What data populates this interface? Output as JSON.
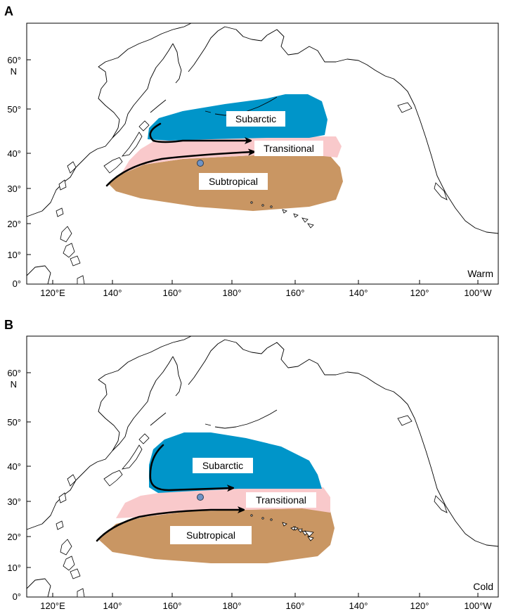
{
  "panels": [
    {
      "letter": "A",
      "condition": "Warm",
      "zones": {
        "subarctic": "Subarctic",
        "transitional": "Transitional",
        "subtropical": "Subtropical"
      },
      "colors": {
        "subarctic": "#0095c9",
        "transitional": "#f9c9cb",
        "subtropical": "#c99663"
      }
    },
    {
      "letter": "B",
      "condition": "Cold",
      "zones": {
        "subarctic": "Subarctic",
        "transitional": "Transitional",
        "subtropical": "Subtropical"
      },
      "colors": {
        "subarctic": "#0095c9",
        "transitional": "#f9c9cb",
        "subtropical": "#c99663"
      }
    }
  ],
  "axes": {
    "lat_labels": [
      "60°",
      "N",
      "50°",
      "40°",
      "30°",
      "20°",
      "10°",
      "0°"
    ],
    "lon_labels": [
      "120°E",
      "140°",
      "160°",
      "180°",
      "160°",
      "140°",
      "120°",
      "100°W"
    ]
  }
}
